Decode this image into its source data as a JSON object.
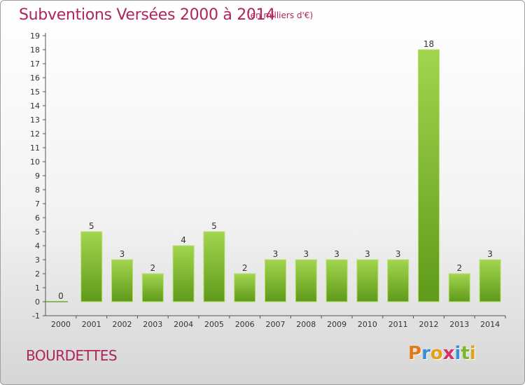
{
  "header": {
    "title": "Subventions Versées 2000 à 2014",
    "subtitle": "(en milliers d'€)"
  },
  "footer": {
    "commune": "BOURDETTES",
    "logo_text": "Proxiti"
  },
  "colors": {
    "title": "#b0245c",
    "bar_top": "#9ccf4a",
    "bar_bottom": "#5f9a1a",
    "axis": "#333333"
  },
  "chart_data": {
    "type": "bar",
    "categories": [
      "2000",
      "2001",
      "2002",
      "2003",
      "2004",
      "2005",
      "2006",
      "2007",
      "2008",
      "2009",
      "2010",
      "2011",
      "2012",
      "2013",
      "2014"
    ],
    "values": [
      0,
      5,
      3,
      2,
      4,
      5,
      2,
      3,
      3,
      3,
      3,
      3,
      18,
      2,
      3
    ],
    "data_labels": [
      "0",
      "5",
      "3",
      "2",
      "4",
      "5",
      "2",
      "3",
      "3",
      "3",
      "3",
      "3",
      "18",
      "2",
      "3"
    ],
    "y_ticks": [
      "-1",
      "0",
      "1",
      "2",
      "3",
      "4",
      "5",
      "6",
      "7",
      "8",
      "9",
      "10",
      "11",
      "12",
      "13",
      "14",
      "15",
      "16",
      "17",
      "18",
      "19"
    ],
    "ylim": [
      -1,
      19
    ],
    "title": "Subventions Versées 2000 à 2014",
    "xlabel": "",
    "ylabel": "",
    "grid": false,
    "legend": "none"
  }
}
